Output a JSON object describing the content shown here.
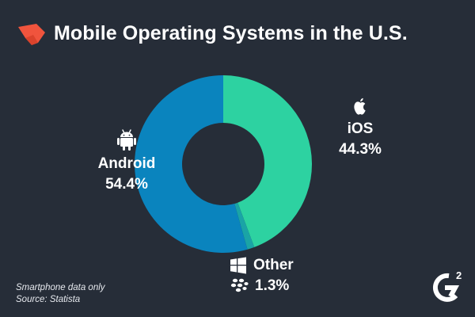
{
  "header": {
    "title": "Mobile Operating Systems in the U.S.",
    "logo_icon": "red-polygon-logo-icon"
  },
  "chart_data": {
    "type": "pie",
    "donut": true,
    "slices": [
      {
        "label": "iOS",
        "value": 44.3,
        "display": "44.3%",
        "color": "#2dd2a1",
        "icon": "apple-icon"
      },
      {
        "label": "Other",
        "value": 1.3,
        "display": "1.3%",
        "color": "#1aa4a6",
        "icon": "windows-icon"
      },
      {
        "label": "Android",
        "value": 54.4,
        "display": "54.4%",
        "color": "#0a84be",
        "icon": "android-icon"
      }
    ],
    "other_extra_icon": "blackberry-icon"
  },
  "notes": {
    "line1": "Smartphone data only",
    "line2": "Source: Statista"
  },
  "brand": {
    "mark_icon": "g2-logo-icon",
    "superscript": "2"
  },
  "colors": {
    "background": "#262d38",
    "accent": "#f0543d"
  }
}
